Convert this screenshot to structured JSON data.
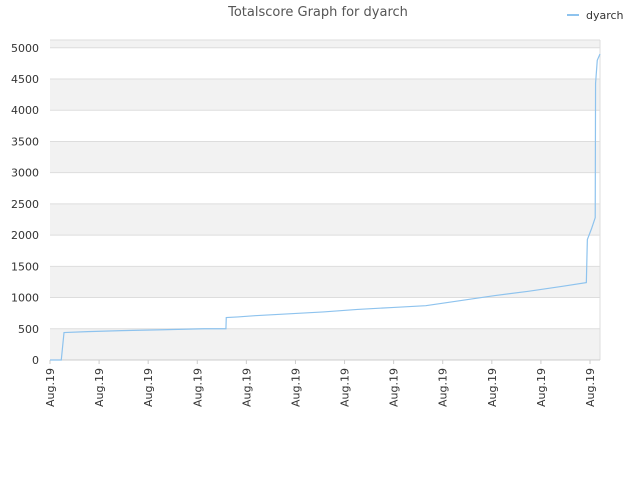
{
  "chart_data": {
    "type": "line",
    "title": "Totalscore Graph for dyarch",
    "xlabel": "",
    "ylabel": "",
    "ylim": [
      0,
      5125
    ],
    "y_ticks": [
      "0",
      "500",
      "1000",
      "1500",
      "2000",
      "2500",
      "3000",
      "3500",
      "4000",
      "4500",
      "5000"
    ],
    "y_tick_values": [
      0,
      500,
      1000,
      1500,
      2000,
      2500,
      3000,
      3500,
      4000,
      4500,
      5000
    ],
    "x_ticks": [
      "Aug.19",
      "Aug.19",
      "Aug.19",
      "Aug.19",
      "Aug.19",
      "Aug.19",
      "Aug.19",
      "Aug.19",
      "Aug.19",
      "Aug.19",
      "Aug.19",
      "Aug.19"
    ],
    "grid": "horizontal alternating bands",
    "legend_position": "top-right",
    "series": [
      {
        "name": "dyarch",
        "color": "#8ec3ee",
        "points": [
          [
            0.0,
            0
          ],
          [
            3.3,
            0
          ],
          [
            4.1,
            440
          ],
          [
            11.0,
            455
          ],
          [
            21.0,
            470
          ],
          [
            33.0,
            485
          ],
          [
            45.0,
            500
          ],
          [
            51.5,
            500
          ],
          [
            51.6,
            680
          ],
          [
            55.0,
            690
          ],
          [
            60.0,
            710
          ],
          [
            70.0,
            740
          ],
          [
            80.0,
            770
          ],
          [
            90.0,
            810
          ],
          [
            100.0,
            840
          ],
          [
            110.0,
            870
          ],
          [
            115.0,
            910
          ],
          [
            120.0,
            950
          ],
          [
            130.0,
            1030
          ],
          [
            140.0,
            1100
          ],
          [
            150.0,
            1180
          ],
          [
            157.0,
            1240
          ],
          [
            157.3,
            1930
          ],
          [
            158.5,
            2100
          ],
          [
            159.6,
            2280
          ],
          [
            159.7,
            4430
          ],
          [
            160.2,
            4800
          ],
          [
            161.0,
            4900
          ]
        ]
      }
    ]
  }
}
